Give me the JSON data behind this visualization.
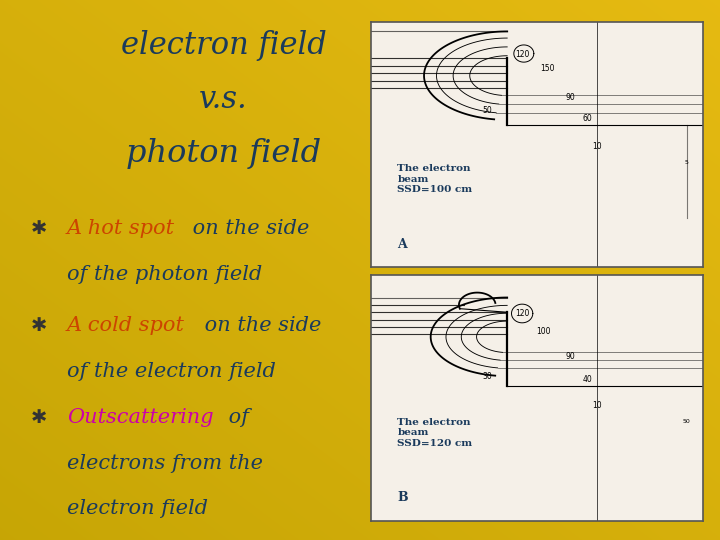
{
  "bg_color": "#c8a500",
  "title_line1": "electron field",
  "title_line2": "v.s.",
  "title_line3": "photon field",
  "title_color": "#1a3a5c",
  "title_fontsize": 22,
  "bullet_symbol": "✱",
  "bullet1_colored": "A hot spot",
  "bullet1_colored_color": "#cc4400",
  "bullet1_rest1": " on the side",
  "bullet1_rest2": "of the photon field",
  "bullet1_rest_color": "#1a3a5c",
  "bullet2_colored": "A cold spot",
  "bullet2_colored_color": "#cc4400",
  "bullet2_rest1": " on the side",
  "bullet2_rest2": "of the electron field",
  "bullet2_rest_color": "#1a3a5c",
  "bullet3_colored": "Outscattering",
  "bullet3_colored_color": "#cc00aa",
  "bullet3_rest1": " of",
  "bullet3_rest2": "electrons from the",
  "bullet3_rest3": "electron field",
  "bullet3_rest_color": "#1a3a5c",
  "bullet_fontsize": 15,
  "panel_label_color": "#1a3a5c",
  "panel_A_text": "The electron\nbeam\nSSD=100 cm",
  "panel_B_text": "The electron\nbeam\nSSD=120 cm",
  "panel_A_label": "A",
  "panel_B_label": "B"
}
